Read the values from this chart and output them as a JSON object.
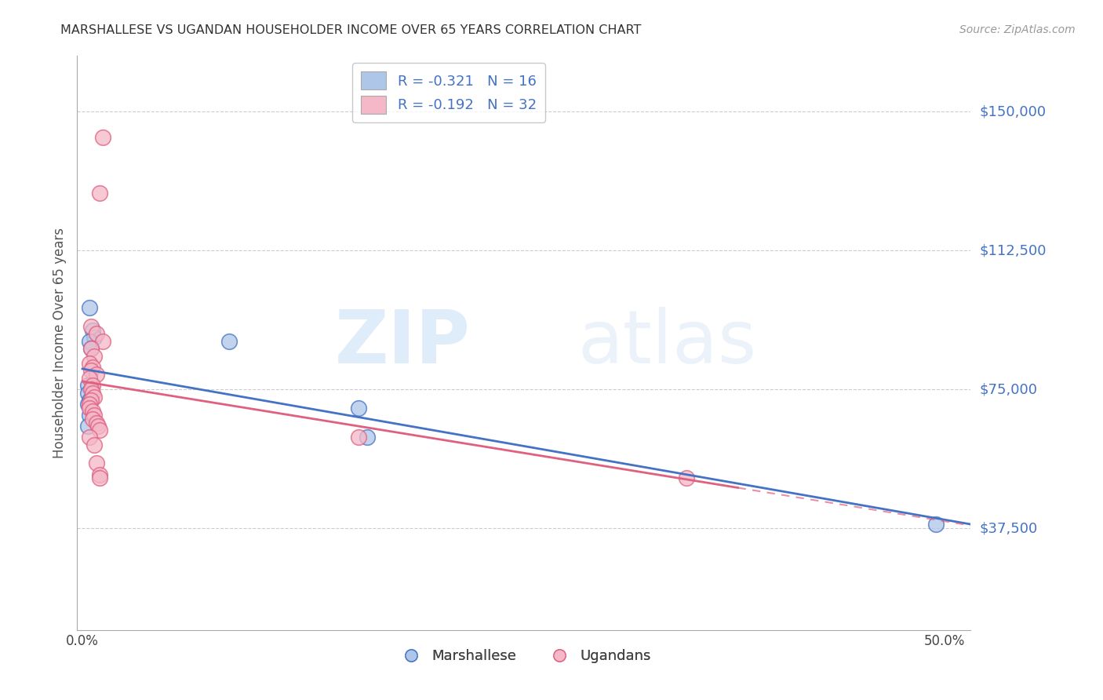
{
  "title": "MARSHALLESE VS UGANDAN HOUSEHOLDER INCOME OVER 65 YEARS CORRELATION CHART",
  "source": "Source: ZipAtlas.com",
  "ylabel": "Householder Income Over 65 years",
  "ytick_labels": [
    "$150,000",
    "$112,500",
    "$75,000",
    "$37,500"
  ],
  "ytick_values": [
    150000,
    112500,
    75000,
    37500
  ],
  "ymin": 10000,
  "ymax": 165000,
  "xmin": -0.003,
  "xmax": 0.515,
  "legend_blue_label": "R = -0.321   N = 16",
  "legend_pink_label": "R = -0.192   N = 32",
  "legend_bottom_marshallese": "Marshallese",
  "legend_bottom_ugandans": "Ugandans",
  "blue_scatter": [
    [
      0.004,
      97000
    ],
    [
      0.006,
      91000
    ],
    [
      0.007,
      89000
    ],
    [
      0.004,
      88000
    ],
    [
      0.005,
      86000
    ],
    [
      0.003,
      76000
    ],
    [
      0.005,
      75000
    ],
    [
      0.003,
      74000
    ],
    [
      0.004,
      72000
    ],
    [
      0.003,
      71000
    ],
    [
      0.004,
      68000
    ],
    [
      0.003,
      65000
    ],
    [
      0.085,
      88000
    ],
    [
      0.16,
      70000
    ],
    [
      0.165,
      62000
    ],
    [
      0.495,
      38500
    ]
  ],
  "pink_scatter": [
    [
      0.012,
      143000
    ],
    [
      0.01,
      128000
    ],
    [
      0.005,
      92000
    ],
    [
      0.008,
      90000
    ],
    [
      0.012,
      88000
    ],
    [
      0.005,
      86000
    ],
    [
      0.007,
      84000
    ],
    [
      0.004,
      82000
    ],
    [
      0.006,
      81000
    ],
    [
      0.005,
      80000
    ],
    [
      0.008,
      79000
    ],
    [
      0.004,
      78000
    ],
    [
      0.006,
      76000
    ],
    [
      0.005,
      75000
    ],
    [
      0.006,
      74000
    ],
    [
      0.007,
      73000
    ],
    [
      0.005,
      72000
    ],
    [
      0.004,
      71000
    ],
    [
      0.004,
      70000
    ],
    [
      0.006,
      69000
    ],
    [
      0.007,
      68000
    ],
    [
      0.006,
      67000
    ],
    [
      0.008,
      66000
    ],
    [
      0.009,
      65000
    ],
    [
      0.01,
      64000
    ],
    [
      0.004,
      62000
    ],
    [
      0.007,
      60000
    ],
    [
      0.16,
      62000
    ],
    [
      0.008,
      55000
    ],
    [
      0.01,
      52000
    ],
    [
      0.01,
      51000
    ],
    [
      0.35,
      51000
    ]
  ],
  "blue_color": "#aec6e8",
  "pink_color": "#f4b8c8",
  "blue_line_color": "#4472c4",
  "pink_line_color": "#e06080",
  "watermark_zip": "ZIP",
  "watermark_atlas": "atlas",
  "background_color": "#ffffff",
  "grid_color": "#cccccc"
}
